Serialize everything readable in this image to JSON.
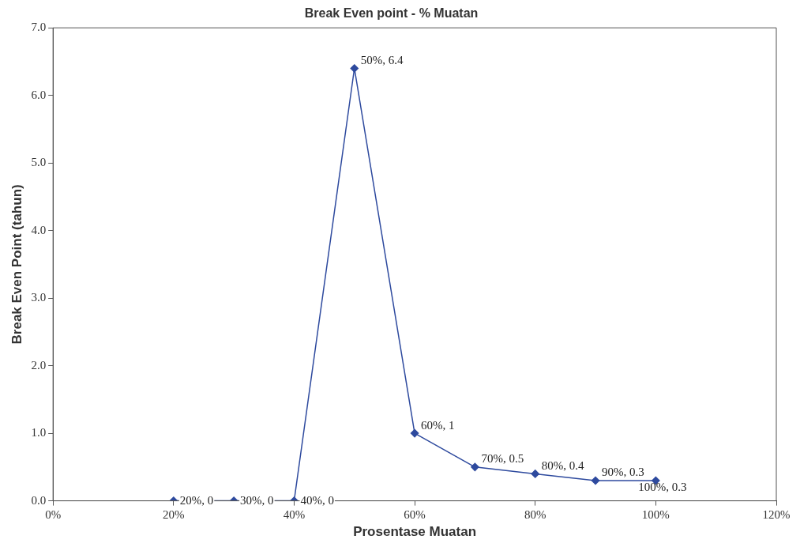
{
  "chart_data": {
    "type": "line",
    "title": "Break Even point - % Muatan",
    "xlabel": "Prosentase Muatan",
    "ylabel": "Break Even Point (tahun)",
    "x": [
      20,
      30,
      40,
      50,
      60,
      70,
      80,
      90,
      100
    ],
    "series": [
      {
        "color": "#2e4a9e",
        "values": [
          0,
          0,
          0,
          6.4,
          1,
          0.5,
          0.4,
          0.3,
          0.3
        ],
        "value_labels": [
          "20%, 0",
          "30%, 0",
          "40%, 0",
          "50%, 6.4",
          "60%, 1",
          "70%, 0.5",
          "80%, 0.4",
          "90%, 0.3",
          "100%, 0.3"
        ]
      }
    ],
    "xlim": [
      0,
      120
    ],
    "xticks": [
      {
        "value": 0,
        "label": "0%"
      },
      {
        "value": 20,
        "label": "20%"
      },
      {
        "value": 40,
        "label": "40%"
      },
      {
        "value": 60,
        "label": "60%"
      },
      {
        "value": 80,
        "label": "80%"
      },
      {
        "value": 100,
        "label": "100%"
      },
      {
        "value": 120,
        "label": "120%"
      }
    ],
    "ylim": [
      0,
      7
    ],
    "yticks": [
      {
        "value": 0,
        "label": "0.0"
      },
      {
        "value": 1,
        "label": "1.0"
      },
      {
        "value": 2,
        "label": "2.0"
      },
      {
        "value": 3,
        "label": "3.0"
      },
      {
        "value": 4,
        "label": "4.0"
      },
      {
        "value": 5,
        "label": "5.0"
      },
      {
        "value": 6,
        "label": "6.0"
      },
      {
        "value": 7,
        "label": "7.0"
      }
    ],
    "grid": false,
    "legend": false,
    "marker": "diamond",
    "line_style": "solid"
  }
}
